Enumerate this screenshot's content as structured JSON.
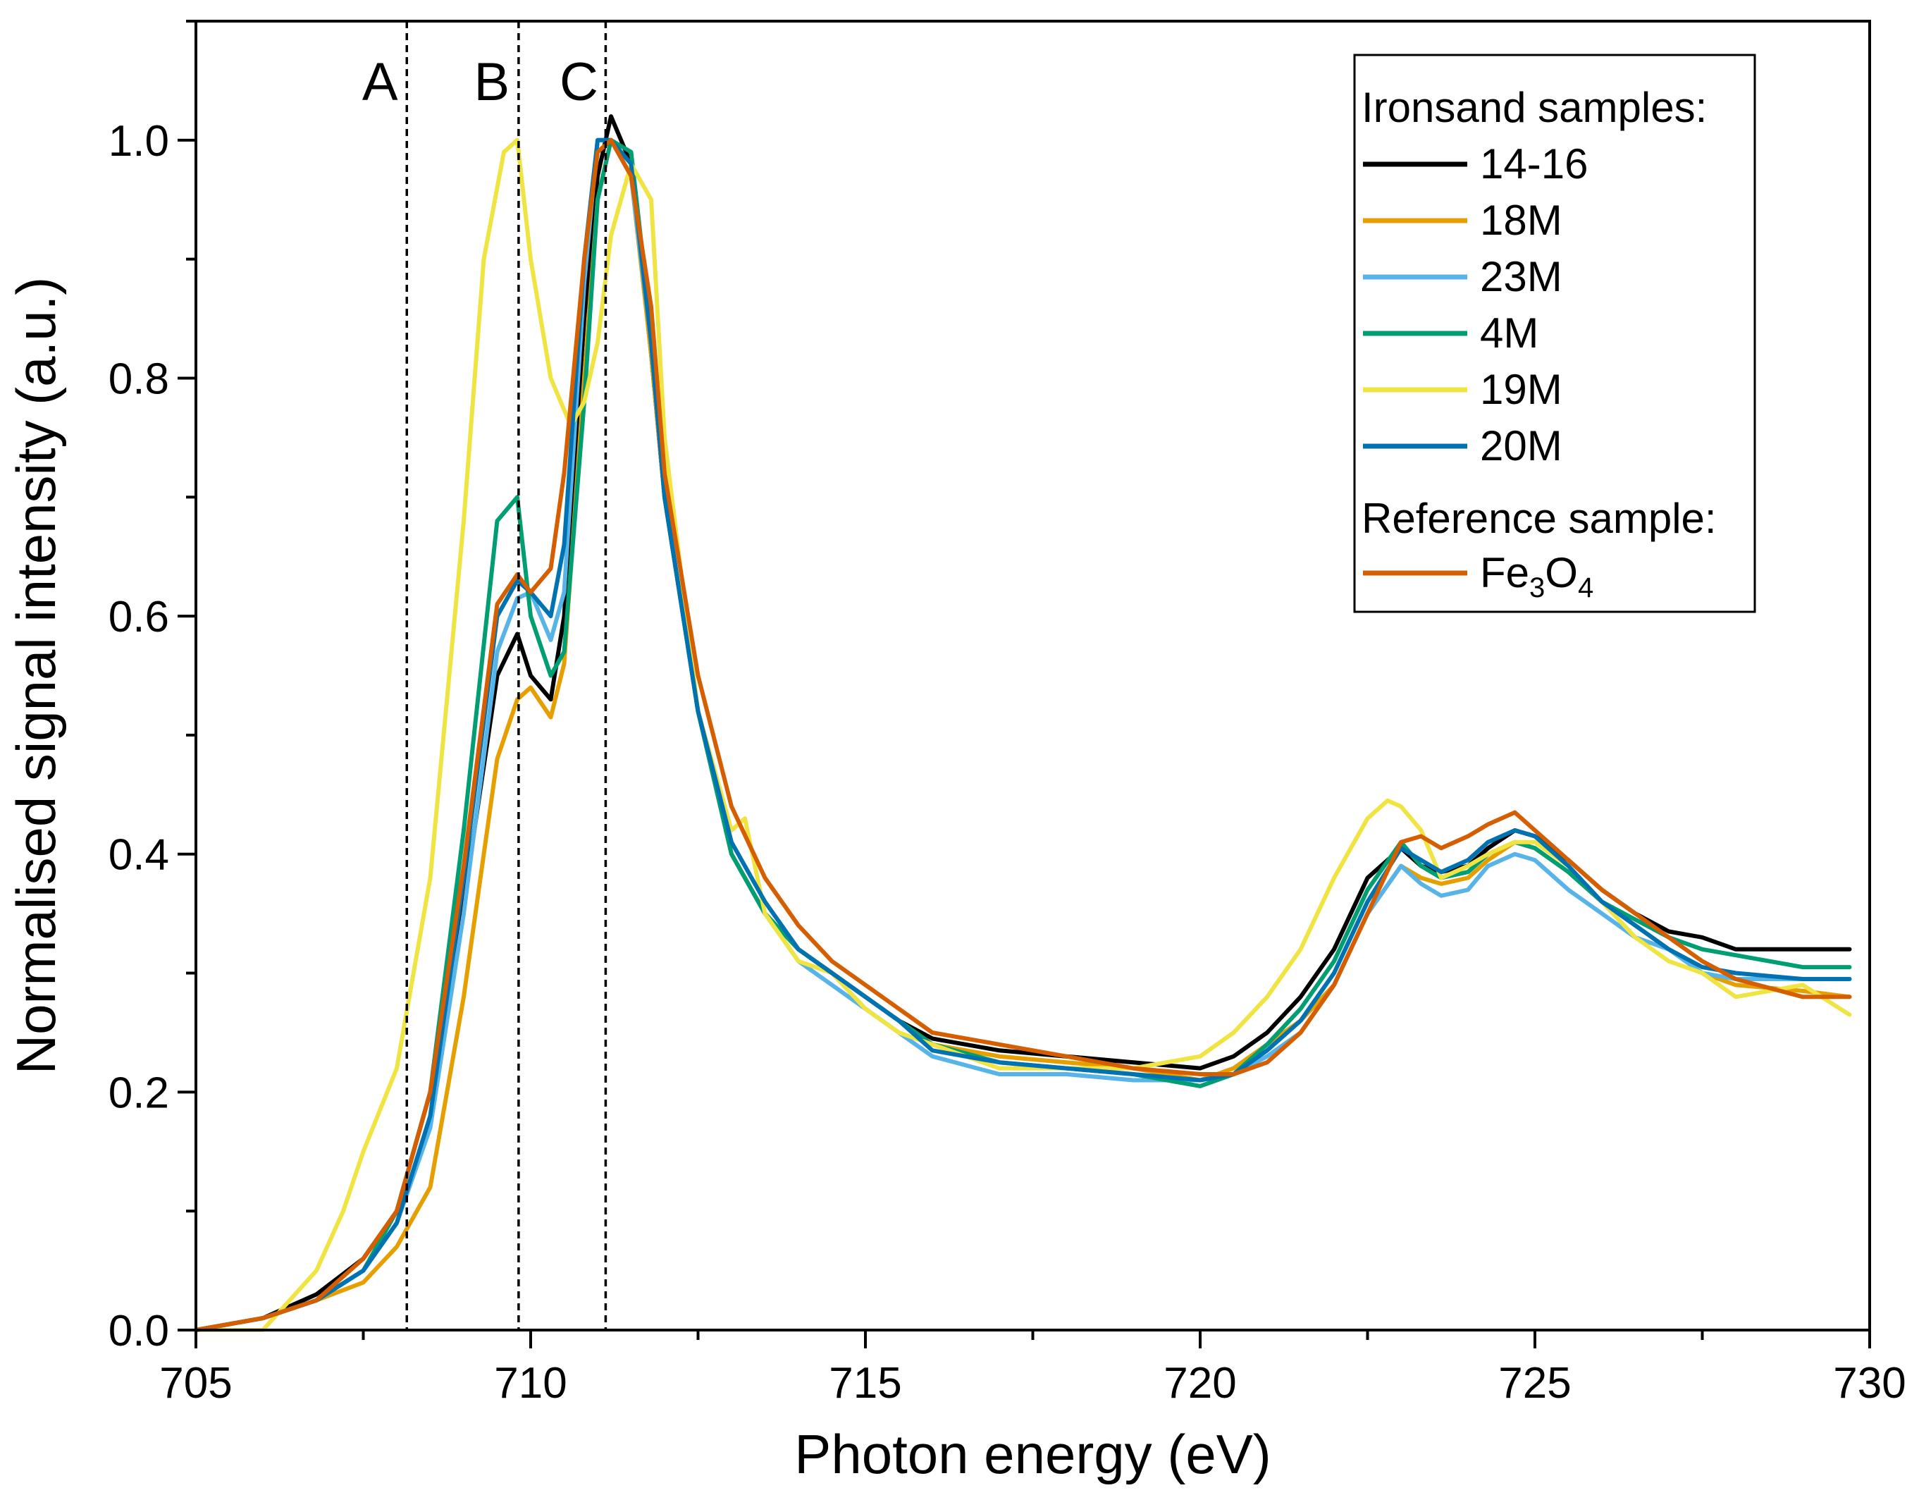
{
  "chart_data": {
    "type": "line",
    "xlabel": "Photon energy (eV)",
    "ylabel": "Normalised signal intensity (a.u.)",
    "xlim": [
      705,
      730
    ],
    "ylim": [
      0,
      1.1
    ],
    "xticks": [
      705,
      710,
      715,
      720,
      725,
      730
    ],
    "xtick_labels": [
      "705",
      "710",
      "715",
      "720",
      "725",
      "730"
    ],
    "yticks": [
      0.0,
      0.2,
      0.4,
      0.6,
      0.8,
      1.0
    ],
    "ytick_labels": [
      "0.0",
      "0.2",
      "0.4",
      "0.6",
      "0.8",
      "1.0"
    ],
    "grid": false,
    "legend_position": "top-right",
    "legend_heading_samples": "Ironsand samples:",
    "legend_heading_reference": "Reference sample:",
    "markers": [
      {
        "label": "A",
        "x": 708.15
      },
      {
        "label": "B",
        "x": 709.82
      },
      {
        "label": "C",
        "x": 711.12
      }
    ],
    "series": [
      {
        "name": "14-16",
        "color": "#000000",
        "x": [
          705,
          706,
          706.8,
          707.5,
          708,
          708.5,
          709,
          709.5,
          709.8,
          710,
          710.3,
          710.5,
          710.8,
          711,
          711.2,
          711.5,
          711.8,
          712,
          712.5,
          713,
          713.5,
          714,
          714.5,
          715,
          715.5,
          716,
          717,
          718,
          719,
          720,
          720.5,
          721,
          721.5,
          722,
          722.5,
          723,
          723.3,
          723.6,
          724,
          724.3,
          724.7,
          725,
          725.5,
          726,
          726.5,
          727,
          727.5,
          728,
          729,
          729.7
        ],
        "y": [
          0.0,
          0.01,
          0.03,
          0.06,
          0.1,
          0.2,
          0.36,
          0.55,
          0.585,
          0.55,
          0.53,
          0.6,
          0.85,
          0.97,
          1.02,
          0.98,
          0.82,
          0.7,
          0.52,
          0.4,
          0.35,
          0.32,
          0.3,
          0.28,
          0.26,
          0.245,
          0.235,
          0.23,
          0.225,
          0.22,
          0.23,
          0.25,
          0.28,
          0.32,
          0.38,
          0.405,
          0.39,
          0.385,
          0.39,
          0.405,
          0.42,
          0.415,
          0.395,
          0.37,
          0.35,
          0.335,
          0.33,
          0.32,
          0.32,
          0.32
        ]
      },
      {
        "name": "18M",
        "color": "#E69F00",
        "x": [
          705,
          706,
          706.8,
          707.5,
          708,
          708.5,
          709,
          709.5,
          709.8,
          710,
          710.3,
          710.5,
          710.8,
          711,
          711.2,
          711.5,
          711.8,
          712,
          712.5,
          713,
          713.5,
          714,
          714.5,
          715,
          715.5,
          716,
          717,
          718,
          719,
          720,
          720.5,
          721,
          721.5,
          722,
          722.5,
          723,
          723.3,
          723.6,
          724,
          724.3,
          724.7,
          725,
          725.5,
          726,
          726.5,
          727,
          727.5,
          728,
          729,
          729.7
        ],
        "y": [
          0.0,
          0.01,
          0.025,
          0.04,
          0.07,
          0.12,
          0.28,
          0.48,
          0.53,
          0.54,
          0.515,
          0.56,
          0.8,
          0.95,
          1.0,
          0.97,
          0.82,
          0.7,
          0.52,
          0.4,
          0.35,
          0.32,
          0.3,
          0.28,
          0.26,
          0.24,
          0.23,
          0.225,
          0.22,
          0.21,
          0.22,
          0.24,
          0.26,
          0.29,
          0.35,
          0.39,
          0.38,
          0.375,
          0.38,
          0.395,
          0.41,
          0.405,
          0.385,
          0.36,
          0.34,
          0.32,
          0.3,
          0.29,
          0.285,
          0.28
        ]
      },
      {
        "name": "23M",
        "color": "#56B4E9",
        "x": [
          705,
          706,
          706.8,
          707.5,
          708,
          708.5,
          709,
          709.5,
          709.8,
          710,
          710.3,
          710.5,
          710.8,
          711,
          711.2,
          711.5,
          711.8,
          712,
          712.5,
          713,
          713.5,
          714,
          714.5,
          715,
          715.5,
          716,
          717,
          718,
          719,
          720,
          720.5,
          721,
          721.5,
          722,
          722.5,
          723,
          723.3,
          723.6,
          724,
          724.3,
          724.7,
          725,
          725.5,
          726,
          726.5,
          727,
          727.5,
          728,
          729,
          729.7
        ],
        "y": [
          0.0,
          0.01,
          0.025,
          0.05,
          0.09,
          0.17,
          0.35,
          0.57,
          0.615,
          0.62,
          0.58,
          0.62,
          0.88,
          1.0,
          1.0,
          0.97,
          0.83,
          0.7,
          0.52,
          0.4,
          0.35,
          0.31,
          0.29,
          0.27,
          0.25,
          0.23,
          0.215,
          0.215,
          0.21,
          0.21,
          0.215,
          0.23,
          0.25,
          0.29,
          0.35,
          0.39,
          0.375,
          0.365,
          0.37,
          0.39,
          0.4,
          0.395,
          0.37,
          0.35,
          0.33,
          0.32,
          0.3,
          0.295,
          0.295,
          0.295
        ]
      },
      {
        "name": "4M",
        "color": "#009E73",
        "x": [
          705,
          706,
          706.8,
          707.5,
          708,
          708.5,
          709,
          709.5,
          709.8,
          710,
          710.3,
          710.5,
          710.8,
          711,
          711.2,
          711.5,
          711.8,
          712,
          712.5,
          713,
          713.5,
          714,
          714.5,
          715,
          715.5,
          716,
          717,
          718,
          719,
          720,
          720.5,
          721,
          721.5,
          722,
          722.5,
          723,
          723.3,
          723.6,
          724,
          724.3,
          724.7,
          725,
          725.5,
          726,
          726.5,
          727,
          727.5,
          728,
          729,
          729.7
        ],
        "y": [
          0.0,
          0.01,
          0.025,
          0.05,
          0.1,
          0.2,
          0.42,
          0.68,
          0.7,
          0.6,
          0.55,
          0.57,
          0.78,
          0.95,
          1.0,
          0.99,
          0.84,
          0.7,
          0.52,
          0.4,
          0.35,
          0.32,
          0.3,
          0.28,
          0.26,
          0.24,
          0.225,
          0.22,
          0.215,
          0.205,
          0.215,
          0.24,
          0.27,
          0.31,
          0.37,
          0.41,
          0.39,
          0.38,
          0.385,
          0.4,
          0.41,
          0.405,
          0.385,
          0.36,
          0.345,
          0.33,
          0.32,
          0.315,
          0.305,
          0.305
        ]
      },
      {
        "name": "19M",
        "color": "#F0E442",
        "x": [
          705,
          706,
          706.8,
          707.2,
          707.5,
          708,
          708.5,
          709,
          709.3,
          709.6,
          709.8,
          710,
          710.3,
          710.6,
          710.8,
          711,
          711.2,
          711.5,
          711.8,
          712,
          712.5,
          713,
          713.2,
          713.5,
          714,
          714.5,
          715,
          715.5,
          716,
          716.5,
          717,
          718,
          719,
          720,
          720.5,
          721,
          721.5,
          722,
          722.5,
          722.8,
          723,
          723.3,
          723.6,
          724,
          724.3,
          724.7,
          725,
          725.5,
          726,
          726.5,
          727,
          727.5,
          728,
          729,
          729.7
        ],
        "y": [
          0.0,
          0.0,
          0.05,
          0.1,
          0.15,
          0.22,
          0.38,
          0.68,
          0.9,
          0.99,
          1.0,
          0.9,
          0.8,
          0.76,
          0.78,
          0.83,
          0.92,
          0.98,
          0.95,
          0.75,
          0.52,
          0.42,
          0.43,
          0.35,
          0.31,
          0.3,
          0.27,
          0.25,
          0.24,
          0.23,
          0.22,
          0.22,
          0.22,
          0.23,
          0.25,
          0.28,
          0.32,
          0.38,
          0.43,
          0.445,
          0.44,
          0.42,
          0.38,
          0.39,
          0.4,
          0.41,
          0.41,
          0.39,
          0.36,
          0.33,
          0.31,
          0.3,
          0.28,
          0.29,
          0.265
        ]
      },
      {
        "name": "20M",
        "color": "#0072B2",
        "x": [
          705,
          706,
          706.8,
          707.5,
          708,
          708.5,
          709,
          709.5,
          709.8,
          710,
          710.3,
          710.5,
          710.8,
          711,
          711.2,
          711.5,
          711.8,
          712,
          712.5,
          713,
          713.5,
          714,
          714.5,
          715,
          715.5,
          716,
          717,
          718,
          719,
          720,
          720.5,
          721,
          721.5,
          722,
          722.5,
          723,
          723.3,
          723.6,
          724,
          724.3,
          724.7,
          725,
          725.5,
          726,
          726.5,
          727,
          727.5,
          728,
          729,
          729.7
        ],
        "y": [
          0.0,
          0.01,
          0.025,
          0.05,
          0.09,
          0.18,
          0.38,
          0.6,
          0.63,
          0.62,
          0.6,
          0.66,
          0.9,
          1.0,
          1.0,
          0.98,
          0.83,
          0.7,
          0.52,
          0.41,
          0.36,
          0.32,
          0.3,
          0.28,
          0.26,
          0.235,
          0.225,
          0.22,
          0.215,
          0.21,
          0.215,
          0.235,
          0.26,
          0.3,
          0.36,
          0.405,
          0.395,
          0.385,
          0.395,
          0.41,
          0.42,
          0.415,
          0.39,
          0.36,
          0.34,
          0.32,
          0.305,
          0.3,
          0.295,
          0.295
        ]
      },
      {
        "name": "Fe3O4",
        "color": "#D55E00",
        "x": [
          705,
          706,
          706.8,
          707.5,
          708,
          708.5,
          709,
          709.5,
          709.8,
          710,
          710.3,
          710.5,
          710.8,
          711,
          711.2,
          711.5,
          711.8,
          712,
          712.5,
          713,
          713.5,
          714,
          714.5,
          715,
          715.5,
          716,
          717,
          718,
          719,
          720,
          720.5,
          721,
          721.5,
          722,
          722.5,
          723,
          723.3,
          723.6,
          724,
          724.3,
          724.7,
          725,
          725.5,
          726,
          726.5,
          727,
          727.5,
          728,
          729,
          729.7
        ],
        "y": [
          0.0,
          0.01,
          0.025,
          0.06,
          0.1,
          0.2,
          0.39,
          0.61,
          0.635,
          0.62,
          0.64,
          0.72,
          0.9,
          0.99,
          1.0,
          0.97,
          0.86,
          0.72,
          0.55,
          0.44,
          0.38,
          0.34,
          0.31,
          0.29,
          0.27,
          0.25,
          0.24,
          0.23,
          0.22,
          0.215,
          0.215,
          0.225,
          0.25,
          0.29,
          0.35,
          0.41,
          0.415,
          0.405,
          0.415,
          0.425,
          0.435,
          0.42,
          0.395,
          0.37,
          0.35,
          0.33,
          0.31,
          0.295,
          0.28,
          0.28
        ]
      }
    ]
  }
}
